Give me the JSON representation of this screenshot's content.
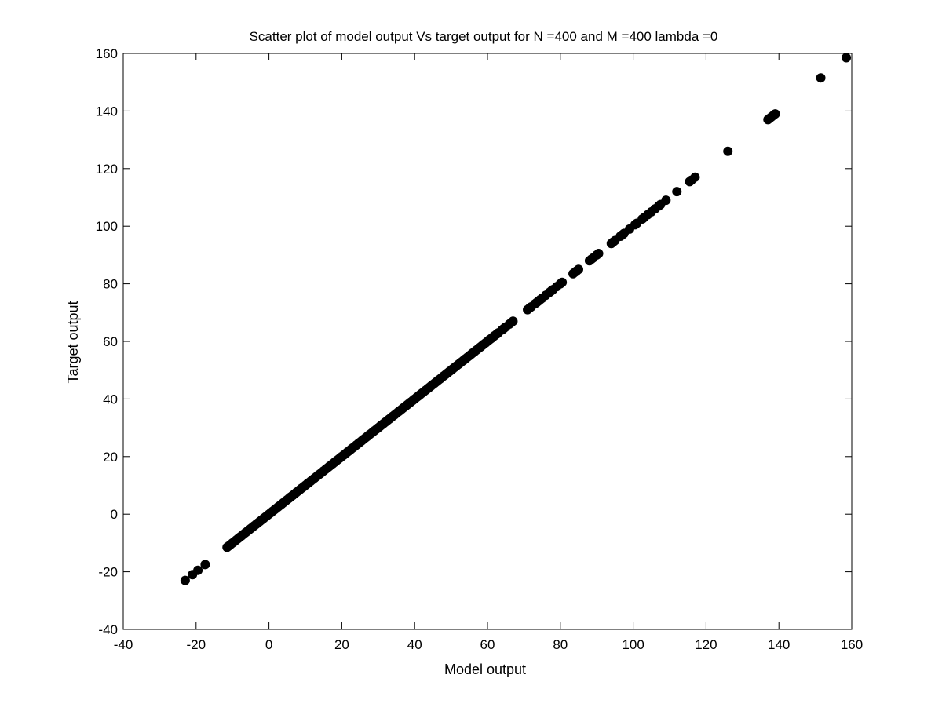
{
  "chart_data": {
    "type": "scatter",
    "title": "Scatter plot of model output Vs target output for N =400 and M =400 lambda =0",
    "xlabel": "Model output",
    "ylabel": "Target output",
    "xlim": [
      -40,
      160
    ],
    "ylim": [
      -40,
      160
    ],
    "xticks": [
      -40,
      -20,
      0,
      20,
      40,
      60,
      80,
      100,
      120,
      140,
      160
    ],
    "yticks": [
      -40,
      -20,
      0,
      20,
      40,
      60,
      80,
      100,
      120,
      140,
      160
    ],
    "grid": false,
    "legend": "none",
    "marker_color": "#000000",
    "series": [
      {
        "x": [
          -23.0,
          -21.0,
          -19.5,
          -17.5,
          -11.5,
          -11.0,
          -10.5,
          -10.0,
          -9.5,
          -9.0,
          -8.5,
          -8.0,
          -7.5,
          -7.0,
          -6.5,
          -6.0,
          -5.5,
          -5.0,
          -4.5,
          -4.0,
          -3.5,
          -3.0,
          -2.5,
          -2.0,
          -1.5,
          -1.0,
          -0.5,
          0.0,
          0.5,
          1.0,
          1.5,
          2.0,
          2.5,
          3.0,
          3.5,
          4.0,
          4.5,
          5.0,
          5.5,
          6.0,
          6.5,
          7.0,
          7.5,
          8.0,
          8.5,
          9.0,
          9.5,
          10.0,
          10.5,
          11.0,
          11.5,
          12.0,
          12.5,
          13.0,
          13.5,
          14.0,
          14.5,
          15.0,
          15.5,
          16.0,
          16.5,
          17.0,
          17.5,
          18.0,
          18.5,
          19.0,
          19.5,
          20.0,
          20.5,
          21.0,
          21.5,
          22.0,
          22.5,
          23.0,
          23.5,
          24.0,
          24.5,
          25.0,
          25.5,
          26.0,
          26.5,
          27.0,
          27.5,
          28.0,
          28.5,
          29.0,
          29.5,
          30.0,
          30.5,
          31.0,
          31.5,
          32.0,
          32.5,
          33.0,
          33.5,
          34.0,
          34.5,
          35.0,
          35.5,
          36.0,
          36.5,
          37.0,
          37.5,
          38.0,
          38.5,
          39.0,
          39.5,
          40.0,
          40.5,
          41.0,
          41.5,
          42.0,
          42.5,
          43.0,
          43.5,
          44.0,
          44.5,
          45.0,
          45.5,
          46.0,
          46.5,
          47.0,
          47.5,
          48.0,
          48.5,
          49.0,
          49.5,
          50.0,
          50.5,
          51.0,
          51.5,
          52.0,
          52.5,
          53.0,
          53.5,
          54.0,
          54.5,
          55.0,
          55.5,
          56.0,
          56.5,
          57.0,
          57.5,
          58.0,
          58.5,
          59.0,
          59.5,
          60.0,
          60.5,
          61.0,
          61.5,
          62.0,
          62.5,
          63.0,
          64.0,
          64.5,
          65.0,
          66.0,
          66.5,
          67.0,
          71.0,
          71.5,
          72.0,
          73.0,
          73.5,
          74.0,
          74.5,
          75.0,
          76.0,
          77.0,
          77.5,
          78.0,
          79.0,
          80.0,
          80.5,
          83.5,
          84.0,
          84.5,
          85.0,
          88.0,
          88.5,
          89.0,
          90.0,
          90.5,
          94.0,
          94.5,
          95.0,
          96.5,
          97.0,
          97.5,
          99.0,
          100.5,
          101.0,
          102.5,
          103.0,
          104.0,
          105.0,
          106.0,
          107.0,
          107.5,
          109.0,
          112.0,
          115.5,
          116.0,
          117.0,
          126.0,
          137.0,
          137.5,
          138.0,
          138.5,
          139.0,
          151.5,
          158.5
        ],
        "y": [
          -23.0,
          -21.0,
          -19.5,
          -17.5,
          -11.5,
          -11.0,
          -10.5,
          -10.0,
          -9.5,
          -9.0,
          -8.5,
          -8.0,
          -7.5,
          -7.0,
          -6.5,
          -6.0,
          -5.5,
          -5.0,
          -4.5,
          -4.0,
          -3.5,
          -3.0,
          -2.5,
          -2.0,
          -1.5,
          -1.0,
          -0.5,
          0.0,
          0.5,
          1.0,
          1.5,
          2.0,
          2.5,
          3.0,
          3.5,
          4.0,
          4.5,
          5.0,
          5.5,
          6.0,
          6.5,
          7.0,
          7.5,
          8.0,
          8.5,
          9.0,
          9.5,
          10.0,
          10.5,
          11.0,
          11.5,
          12.0,
          12.5,
          13.0,
          13.5,
          14.0,
          14.5,
          15.0,
          15.5,
          16.0,
          16.5,
          17.0,
          17.5,
          18.0,
          18.5,
          19.0,
          19.5,
          20.0,
          20.5,
          21.0,
          21.5,
          22.0,
          22.5,
          23.0,
          23.5,
          24.0,
          24.5,
          25.0,
          25.5,
          26.0,
          26.5,
          27.0,
          27.5,
          28.0,
          28.5,
          29.0,
          29.5,
          30.0,
          30.5,
          31.0,
          31.5,
          32.0,
          32.5,
          33.0,
          33.5,
          34.0,
          34.5,
          35.0,
          35.5,
          36.0,
          36.5,
          37.0,
          37.5,
          38.0,
          38.5,
          39.0,
          39.5,
          40.0,
          40.5,
          41.0,
          41.5,
          42.0,
          42.5,
          43.0,
          43.5,
          44.0,
          44.5,
          45.0,
          45.5,
          46.0,
          46.5,
          47.0,
          47.5,
          48.0,
          48.5,
          49.0,
          49.5,
          50.0,
          50.5,
          51.0,
          51.5,
          52.0,
          52.5,
          53.0,
          53.5,
          54.0,
          54.5,
          55.0,
          55.5,
          56.0,
          56.5,
          57.0,
          57.5,
          58.0,
          58.5,
          59.0,
          59.5,
          60.0,
          60.5,
          61.0,
          61.5,
          62.0,
          62.5,
          63.0,
          64.0,
          64.5,
          65.0,
          66.0,
          66.5,
          67.0,
          71.0,
          71.5,
          72.0,
          73.0,
          73.5,
          74.0,
          74.5,
          75.0,
          76.0,
          77.0,
          77.5,
          78.0,
          79.0,
          80.0,
          80.5,
          83.5,
          84.0,
          84.5,
          85.0,
          88.0,
          88.5,
          89.0,
          90.0,
          90.5,
          94.0,
          94.5,
          95.0,
          96.5,
          97.0,
          97.5,
          99.0,
          100.5,
          101.0,
          102.5,
          103.0,
          104.0,
          105.0,
          106.0,
          107.0,
          107.5,
          109.0,
          112.0,
          115.5,
          116.0,
          117.0,
          126.0,
          137.0,
          137.5,
          138.0,
          138.5,
          139.0,
          151.5,
          158.5
        ]
      }
    ]
  }
}
